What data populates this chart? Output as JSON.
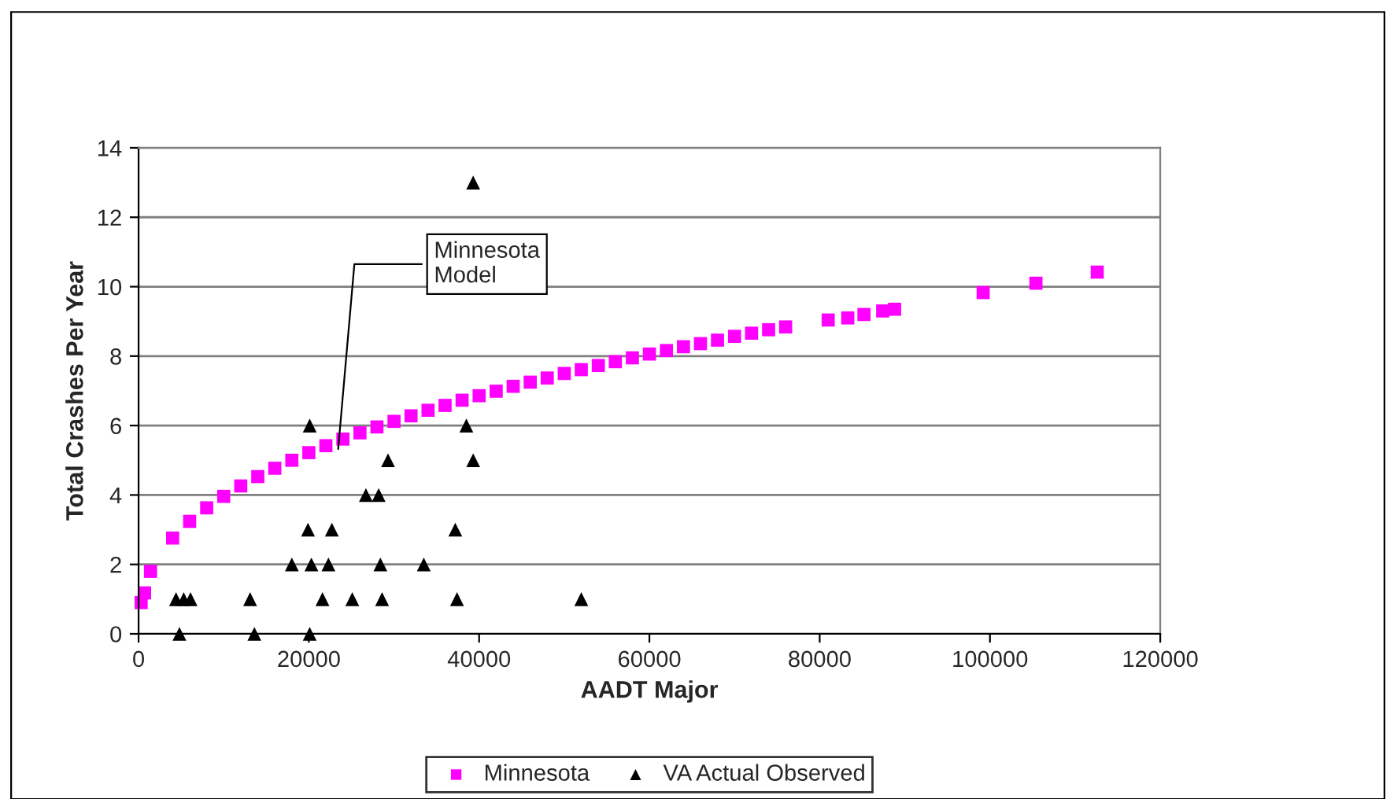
{
  "chart_data": {
    "type": "scatter",
    "xlabel": "AADT Major",
    "ylabel": "Total Crashes Per Year",
    "xlim": [
      0,
      120000
    ],
    "ylim": [
      0,
      14
    ],
    "xticks": [
      0,
      20000,
      40000,
      60000,
      80000,
      100000,
      120000
    ],
    "yticks": [
      0,
      2,
      4,
      6,
      8,
      10,
      12,
      14
    ],
    "grid": "y",
    "legend": "bottom",
    "annotations": [
      {
        "text": "Minnesota\nModel",
        "x": 23400,
        "y": 5.2
      }
    ],
    "series": [
      {
        "name": "Minnesota",
        "color": "#ff00ff",
        "marker": "square",
        "x": [
          300,
          700,
          1400,
          4000,
          6000,
          8000,
          10000,
          12000,
          14000,
          16000,
          18000,
          20000,
          22000,
          24000,
          26000,
          28000,
          30000,
          32000,
          34000,
          36000,
          38000,
          40000,
          42000,
          44000,
          46000,
          48000,
          50000,
          52000,
          54000,
          56000,
          58000,
          60000,
          62000,
          64000,
          66000,
          68000,
          70000,
          72000,
          74000,
          76000,
          81000,
          83300,
          85200,
          87400,
          88800,
          99200,
          105400,
          112600
        ],
        "values": [
          0.9,
          1.18,
          1.8,
          2.76,
          3.24,
          3.63,
          3.96,
          4.26,
          4.53,
          4.77,
          5.0,
          5.22,
          5.42,
          5.61,
          5.79,
          5.96,
          6.12,
          6.28,
          6.44,
          6.58,
          6.73,
          6.86,
          6.99,
          7.13,
          7.25,
          7.37,
          7.5,
          7.61,
          7.73,
          7.84,
          7.95,
          8.06,
          8.16,
          8.27,
          8.36,
          8.46,
          8.57,
          8.66,
          8.76,
          8.84,
          9.04,
          9.1,
          9.2,
          9.3,
          9.35,
          9.83,
          10.1,
          10.42
        ]
      },
      {
        "name": "VA Actual Observed",
        "color": "#000000",
        "marker": "triangle",
        "x": [
          20100,
          39300,
          38500,
          39300,
          29300,
          26700,
          28200,
          19900,
          22700,
          37200,
          18000,
          20000,
          20300,
          22000,
          22300,
          28400,
          33500,
          4400,
          5300,
          6100,
          13100,
          21600,
          25100,
          28600,
          37400,
          52000,
          4800,
          13600,
          20100
        ],
        "values": [
          6,
          13,
          6,
          5,
          5,
          4,
          4,
          3,
          3,
          3,
          2,
          null,
          2,
          null,
          2,
          2,
          2,
          1,
          1,
          1,
          1,
          1,
          1,
          1,
          1,
          1,
          0,
          0,
          0
        ]
      }
    ]
  }
}
